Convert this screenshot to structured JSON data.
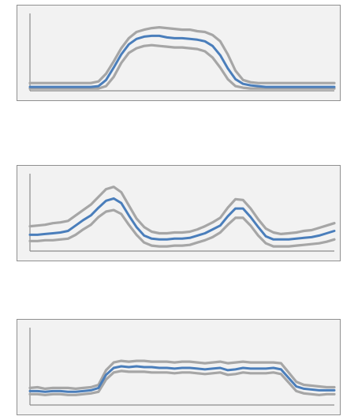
{
  "colors": {
    "background": "#ffffff",
    "panel": "#f2f2f2",
    "panel_border": "#8f8f8f",
    "axis": "#8c8c8c",
    "mean": "#4a7ebb",
    "band": "#a6a6a6"
  },
  "chart_data": [
    {
      "type": "line",
      "xlim": [
        0,
        40
      ],
      "ylim": [
        0,
        1
      ],
      "grid": false,
      "legend": "none",
      "series": [
        {
          "role": "upper",
          "color": "#a6a6a6",
          "values": [
            0.1,
            0.1,
            0.1,
            0.1,
            0.1,
            0.1,
            0.1,
            0.1,
            0.1,
            0.12,
            0.22,
            0.38,
            0.55,
            0.68,
            0.76,
            0.79,
            0.81,
            0.82,
            0.81,
            0.8,
            0.79,
            0.79,
            0.77,
            0.76,
            0.72,
            0.64,
            0.47,
            0.26,
            0.14,
            0.11,
            0.1,
            0.1,
            0.1,
            0.1,
            0.1,
            0.1,
            0.1,
            0.1,
            0.1,
            0.1,
            0.1
          ]
        },
        {
          "role": "mean",
          "color": "#4a7ebb",
          "values": [
            0.05,
            0.05,
            0.05,
            0.05,
            0.05,
            0.05,
            0.05,
            0.05,
            0.05,
            0.06,
            0.14,
            0.3,
            0.47,
            0.6,
            0.67,
            0.7,
            0.71,
            0.71,
            0.69,
            0.68,
            0.68,
            0.67,
            0.66,
            0.64,
            0.58,
            0.46,
            0.29,
            0.15,
            0.09,
            0.07,
            0.06,
            0.05,
            0.05,
            0.05,
            0.05,
            0.05,
            0.05,
            0.05,
            0.05,
            0.05,
            0.05
          ]
        },
        {
          "role": "lower",
          "color": "#a6a6a6",
          "values": [
            0.03,
            0.03,
            0.03,
            0.03,
            0.03,
            0.03,
            0.03,
            0.03,
            0.03,
            0.03,
            0.06,
            0.18,
            0.36,
            0.49,
            0.55,
            0.58,
            0.59,
            0.58,
            0.57,
            0.56,
            0.56,
            0.55,
            0.54,
            0.51,
            0.43,
            0.3,
            0.15,
            0.06,
            0.04,
            0.03,
            0.03,
            0.03,
            0.03,
            0.03,
            0.03,
            0.03,
            0.03,
            0.03,
            0.03,
            0.03,
            0.03
          ]
        }
      ]
    },
    {
      "type": "line",
      "xlim": [
        0,
        40
      ],
      "ylim": [
        0,
        1
      ],
      "grid": false,
      "legend": "none",
      "series": [
        {
          "role": "upper",
          "color": "#a6a6a6",
          "values": [
            0.32,
            0.33,
            0.34,
            0.36,
            0.37,
            0.39,
            0.46,
            0.53,
            0.6,
            0.7,
            0.8,
            0.83,
            0.76,
            0.59,
            0.42,
            0.31,
            0.25,
            0.23,
            0.23,
            0.24,
            0.24,
            0.25,
            0.28,
            0.32,
            0.37,
            0.43,
            0.56,
            0.67,
            0.66,
            0.55,
            0.41,
            0.29,
            0.24,
            0.22,
            0.23,
            0.24,
            0.26,
            0.27,
            0.3,
            0.33,
            0.36
          ]
        },
        {
          "role": "mean",
          "color": "#4a7ebb",
          "values": [
            0.21,
            0.21,
            0.22,
            0.23,
            0.24,
            0.26,
            0.33,
            0.4,
            0.46,
            0.56,
            0.65,
            0.68,
            0.62,
            0.46,
            0.31,
            0.2,
            0.16,
            0.15,
            0.15,
            0.16,
            0.16,
            0.17,
            0.2,
            0.23,
            0.28,
            0.33,
            0.45,
            0.55,
            0.55,
            0.44,
            0.31,
            0.19,
            0.15,
            0.15,
            0.15,
            0.16,
            0.17,
            0.18,
            0.2,
            0.23,
            0.26
          ]
        },
        {
          "role": "lower",
          "color": "#a6a6a6",
          "values": [
            0.13,
            0.13,
            0.14,
            0.14,
            0.15,
            0.16,
            0.21,
            0.28,
            0.34,
            0.44,
            0.51,
            0.53,
            0.48,
            0.34,
            0.21,
            0.11,
            0.07,
            0.06,
            0.06,
            0.07,
            0.07,
            0.08,
            0.11,
            0.14,
            0.18,
            0.24,
            0.34,
            0.43,
            0.43,
            0.33,
            0.2,
            0.1,
            0.06,
            0.06,
            0.06,
            0.07,
            0.08,
            0.09,
            0.1,
            0.12,
            0.15
          ]
        }
      ]
    },
    {
      "type": "line",
      "xlim": [
        0,
        40
      ],
      "ylim": [
        0,
        1
      ],
      "grid": false,
      "legend": "none",
      "series": [
        {
          "role": "upper",
          "color": "#a6a6a6",
          "values": [
            0.22,
            0.23,
            0.21,
            0.22,
            0.22,
            0.22,
            0.21,
            0.22,
            0.23,
            0.26,
            0.45,
            0.55,
            0.57,
            0.56,
            0.57,
            0.57,
            0.56,
            0.56,
            0.56,
            0.55,
            0.56,
            0.56,
            0.55,
            0.54,
            0.55,
            0.56,
            0.54,
            0.55,
            0.56,
            0.55,
            0.55,
            0.55,
            0.55,
            0.54,
            0.42,
            0.3,
            0.26,
            0.25,
            0.24,
            0.23,
            0.23
          ]
        },
        {
          "role": "mean",
          "color": "#4a7ebb",
          "values": [
            0.18,
            0.18,
            0.17,
            0.18,
            0.18,
            0.17,
            0.17,
            0.18,
            0.19,
            0.22,
            0.39,
            0.48,
            0.5,
            0.49,
            0.5,
            0.49,
            0.49,
            0.48,
            0.48,
            0.47,
            0.48,
            0.48,
            0.47,
            0.46,
            0.47,
            0.48,
            0.45,
            0.46,
            0.48,
            0.47,
            0.47,
            0.47,
            0.48,
            0.46,
            0.35,
            0.24,
            0.21,
            0.2,
            0.19,
            0.19,
            0.19
          ]
        },
        {
          "role": "lower",
          "color": "#a6a6a6",
          "values": [
            0.14,
            0.14,
            0.13,
            0.14,
            0.14,
            0.13,
            0.13,
            0.14,
            0.15,
            0.17,
            0.33,
            0.42,
            0.44,
            0.43,
            0.43,
            0.43,
            0.42,
            0.42,
            0.42,
            0.41,
            0.42,
            0.42,
            0.41,
            0.4,
            0.41,
            0.42,
            0.39,
            0.4,
            0.42,
            0.41,
            0.41,
            0.41,
            0.42,
            0.4,
            0.29,
            0.18,
            0.15,
            0.14,
            0.13,
            0.14,
            0.14
          ]
        }
      ]
    }
  ]
}
